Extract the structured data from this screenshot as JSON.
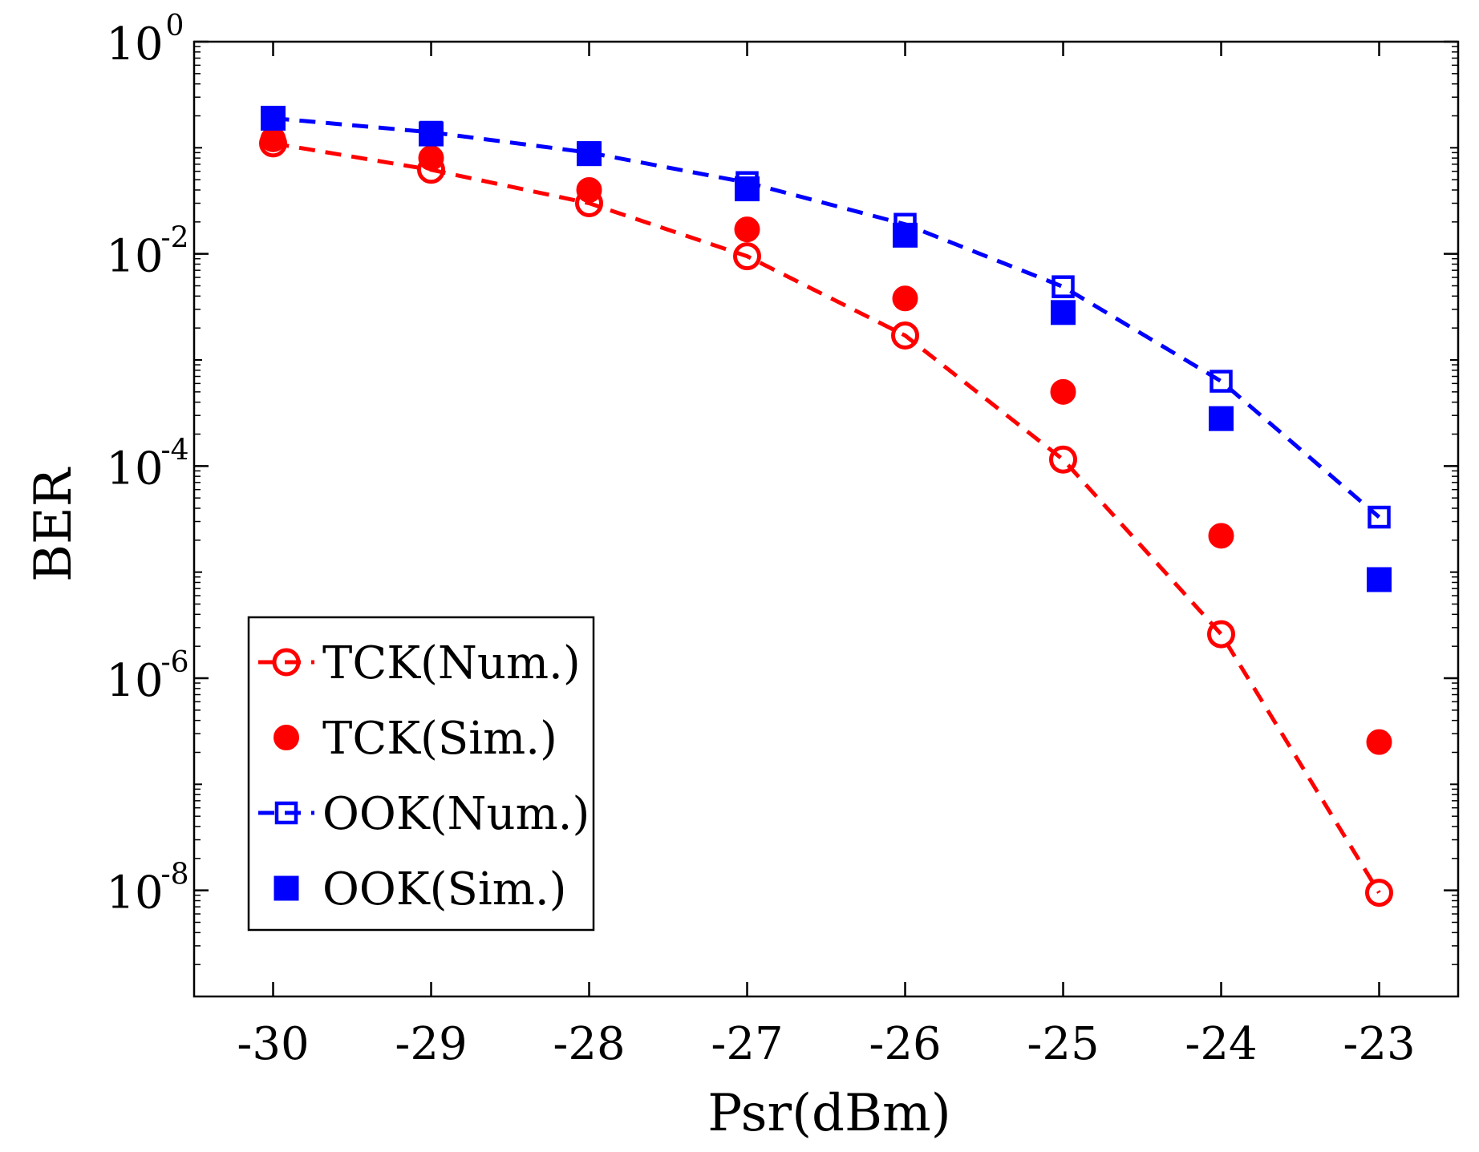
{
  "chart_data": {
    "type": "line",
    "title": "",
    "xlabel": "Psr(dBm)",
    "ylabel": "BER",
    "y_scale": "log",
    "xlim": [
      -30.5,
      -22.5
    ],
    "ylim": [
      1e-09,
      1
    ],
    "x": [
      -30,
      -29,
      -28,
      -27,
      -26,
      -25,
      -24,
      -23
    ],
    "x_tick_labels": [
      "-30",
      "-29",
      "-28",
      "-27",
      "-26",
      "-25",
      "-24",
      "-23"
    ],
    "y_ticks": [
      {
        "value": 1,
        "base": "10",
        "exp": "0"
      },
      {
        "value": 0.01,
        "base": "10",
        "exp": "-2"
      },
      {
        "value": 0.0001,
        "base": "10",
        "exp": "-4"
      },
      {
        "value": 1e-06,
        "base": "10",
        "exp": "-6"
      },
      {
        "value": 1e-08,
        "base": "10",
        "exp": "-8"
      }
    ],
    "series": [
      {
        "name": "TCK(Num.)",
        "color": "#ff0000",
        "line": "dashed",
        "marker": "open-circle",
        "values": [
          0.11,
          0.062,
          0.03,
          0.0095,
          0.0017,
          0.000115,
          2.6e-06,
          9.5e-09
        ]
      },
      {
        "name": "TCK(Sim.)",
        "color": "#ff0000",
        "line": "none",
        "marker": "filled-circle",
        "values": [
          0.12,
          0.08,
          0.04,
          0.017,
          0.0038,
          0.0005,
          2.2e-05,
          2.5e-07
        ]
      },
      {
        "name": "OOK(Num.)",
        "color": "#0000ff",
        "line": "dashed",
        "marker": "open-square",
        "values": [
          0.19,
          0.14,
          0.09,
          0.047,
          0.019,
          0.0049,
          0.00063,
          3.3e-05
        ]
      },
      {
        "name": "OOK(Sim.)",
        "color": "#0000ff",
        "line": "none",
        "marker": "filled-square",
        "values": [
          0.19,
          0.135,
          0.088,
          0.041,
          0.015,
          0.0028,
          0.00028,
          8.5e-06
        ]
      }
    ],
    "legend": {
      "position": "lower-left"
    },
    "grid": false
  }
}
